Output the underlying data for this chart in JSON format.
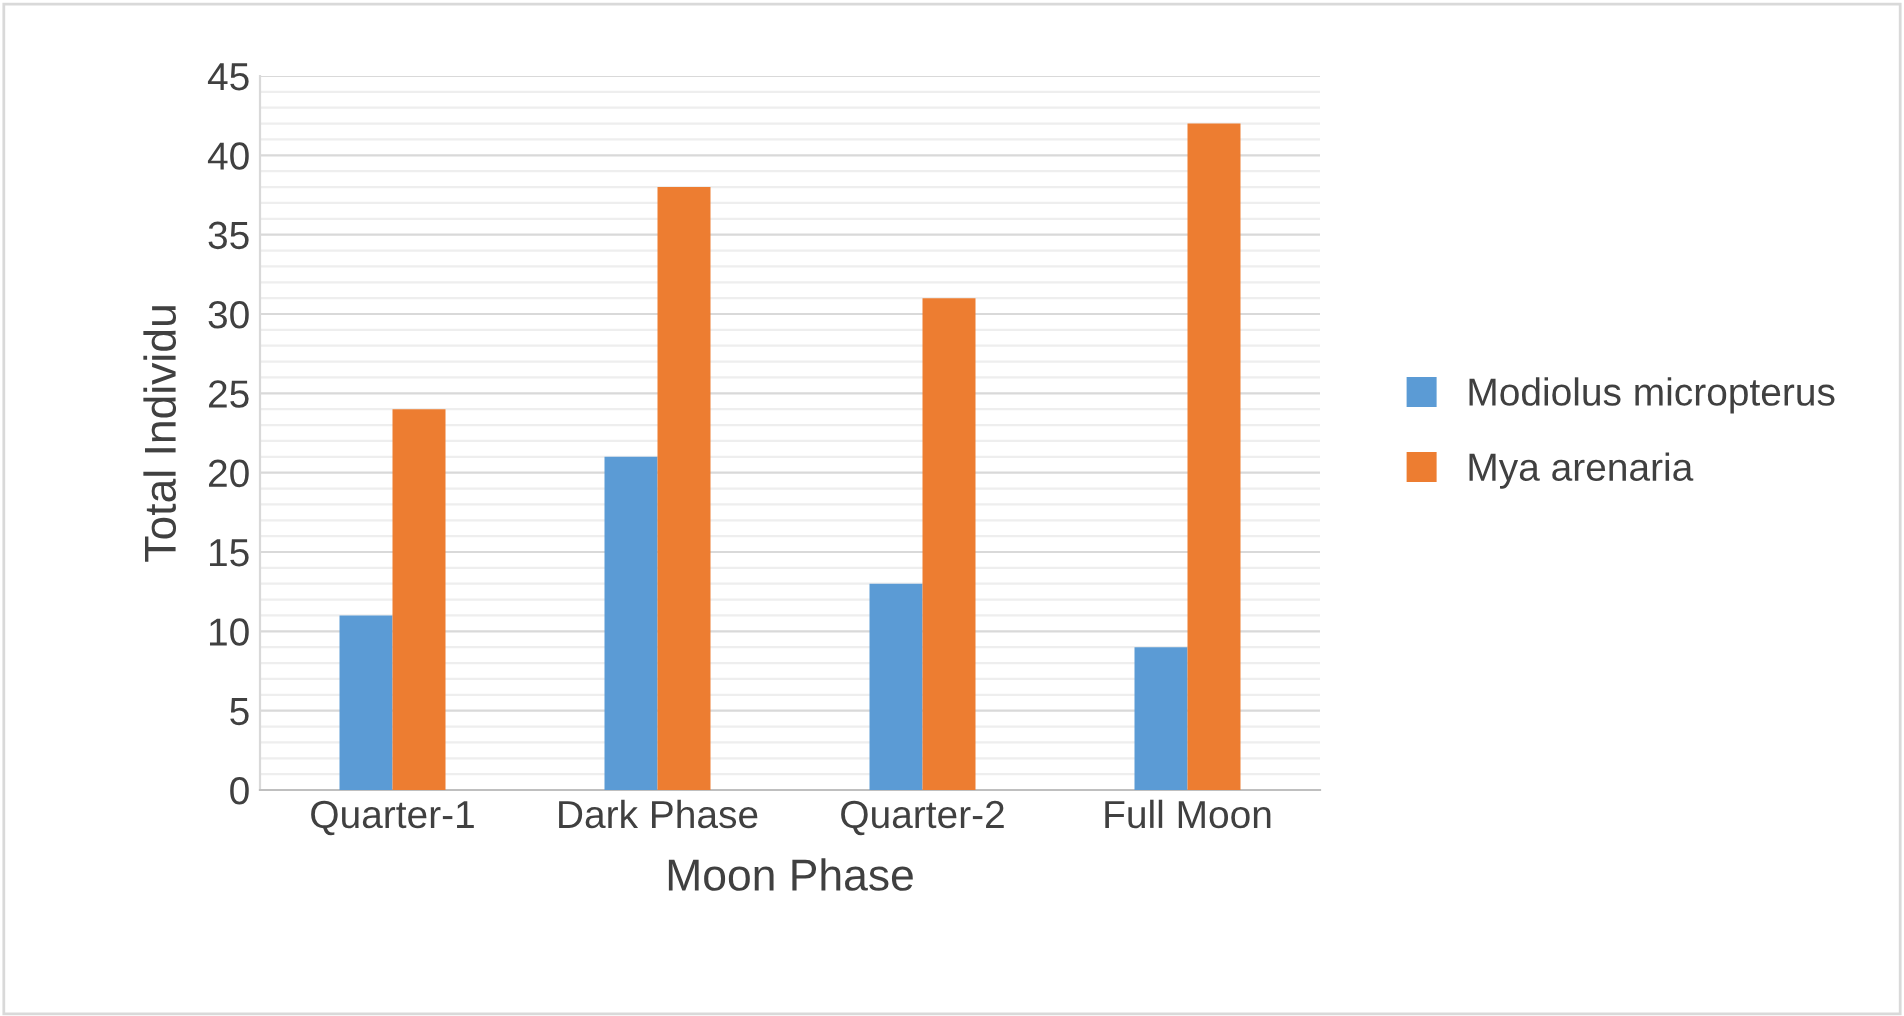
{
  "chart_data": {
    "type": "bar",
    "xlabel": "Moon Phase",
    "ylabel": "Total Individu",
    "categories": [
      "Quarter-1",
      "Dark Phase",
      "Quarter-2",
      "Full Moon"
    ],
    "series": [
      {
        "name": "Modiolus micropterus",
        "color": "#5b9bd5",
        "values": [
          11,
          21,
          13,
          9
        ]
      },
      {
        "name": "Mya arenaria",
        "color": "#ed7d31",
        "values": [
          24,
          38,
          31,
          42
        ]
      }
    ],
    "ylim": [
      0,
      45
    ],
    "yticks": [
      0,
      {
        "value": 1,
        "label": null
      },
      {
        "value": 2,
        "label": null
      },
      {
        "value": 3,
        "label": null
      },
      {
        "value": 4,
        "label": null
      },
      5,
      {
        "value": 6,
        "label": null
      },
      {
        "value": 7,
        "label": null
      },
      {
        "value": 8,
        "label": null
      },
      {
        "value": 9,
        "label": null
      },
      10,
      {
        "value": 11,
        "label": null
      },
      {
        "value": 12,
        "label": null
      },
      {
        "value": 13,
        "label": null
      },
      {
        "value": 14,
        "label": null
      },
      15,
      {
        "value": 16,
        "label": null
      },
      {
        "value": 17,
        "label": null
      },
      {
        "value": 18,
        "label": null
      },
      {
        "value": 19,
        "label": null
      },
      20,
      {
        "value": 21,
        "label": null
      },
      {
        "value": 22,
        "label": null
      },
      {
        "value": 23,
        "label": null
      },
      {
        "value": 24,
        "label": null
      },
      25,
      {
        "value": 26,
        "label": null
      },
      {
        "value": 27,
        "label": null
      },
      {
        "value": 28,
        "label": null
      },
      {
        "value": 29,
        "label": null
      },
      30,
      {
        "value": 31,
        "label": null
      },
      {
        "value": 32,
        "label": null
      },
      {
        "value": 33,
        "label": null
      },
      {
        "value": 34,
        "label": null
      },
      35,
      {
        "value": 36,
        "label": null
      },
      {
        "value": 37,
        "label": null
      },
      {
        "value": 38,
        "label": null
      },
      {
        "value": 39,
        "label": null
      },
      40,
      {
        "value": 41,
        "label": null
      },
      {
        "value": 42,
        "label": null
      },
      {
        "value": 43,
        "label": null
      },
      {
        "value": 44,
        "label": null
      },
      45
    ],
    "grid": "y",
    "legend": "right"
  }
}
